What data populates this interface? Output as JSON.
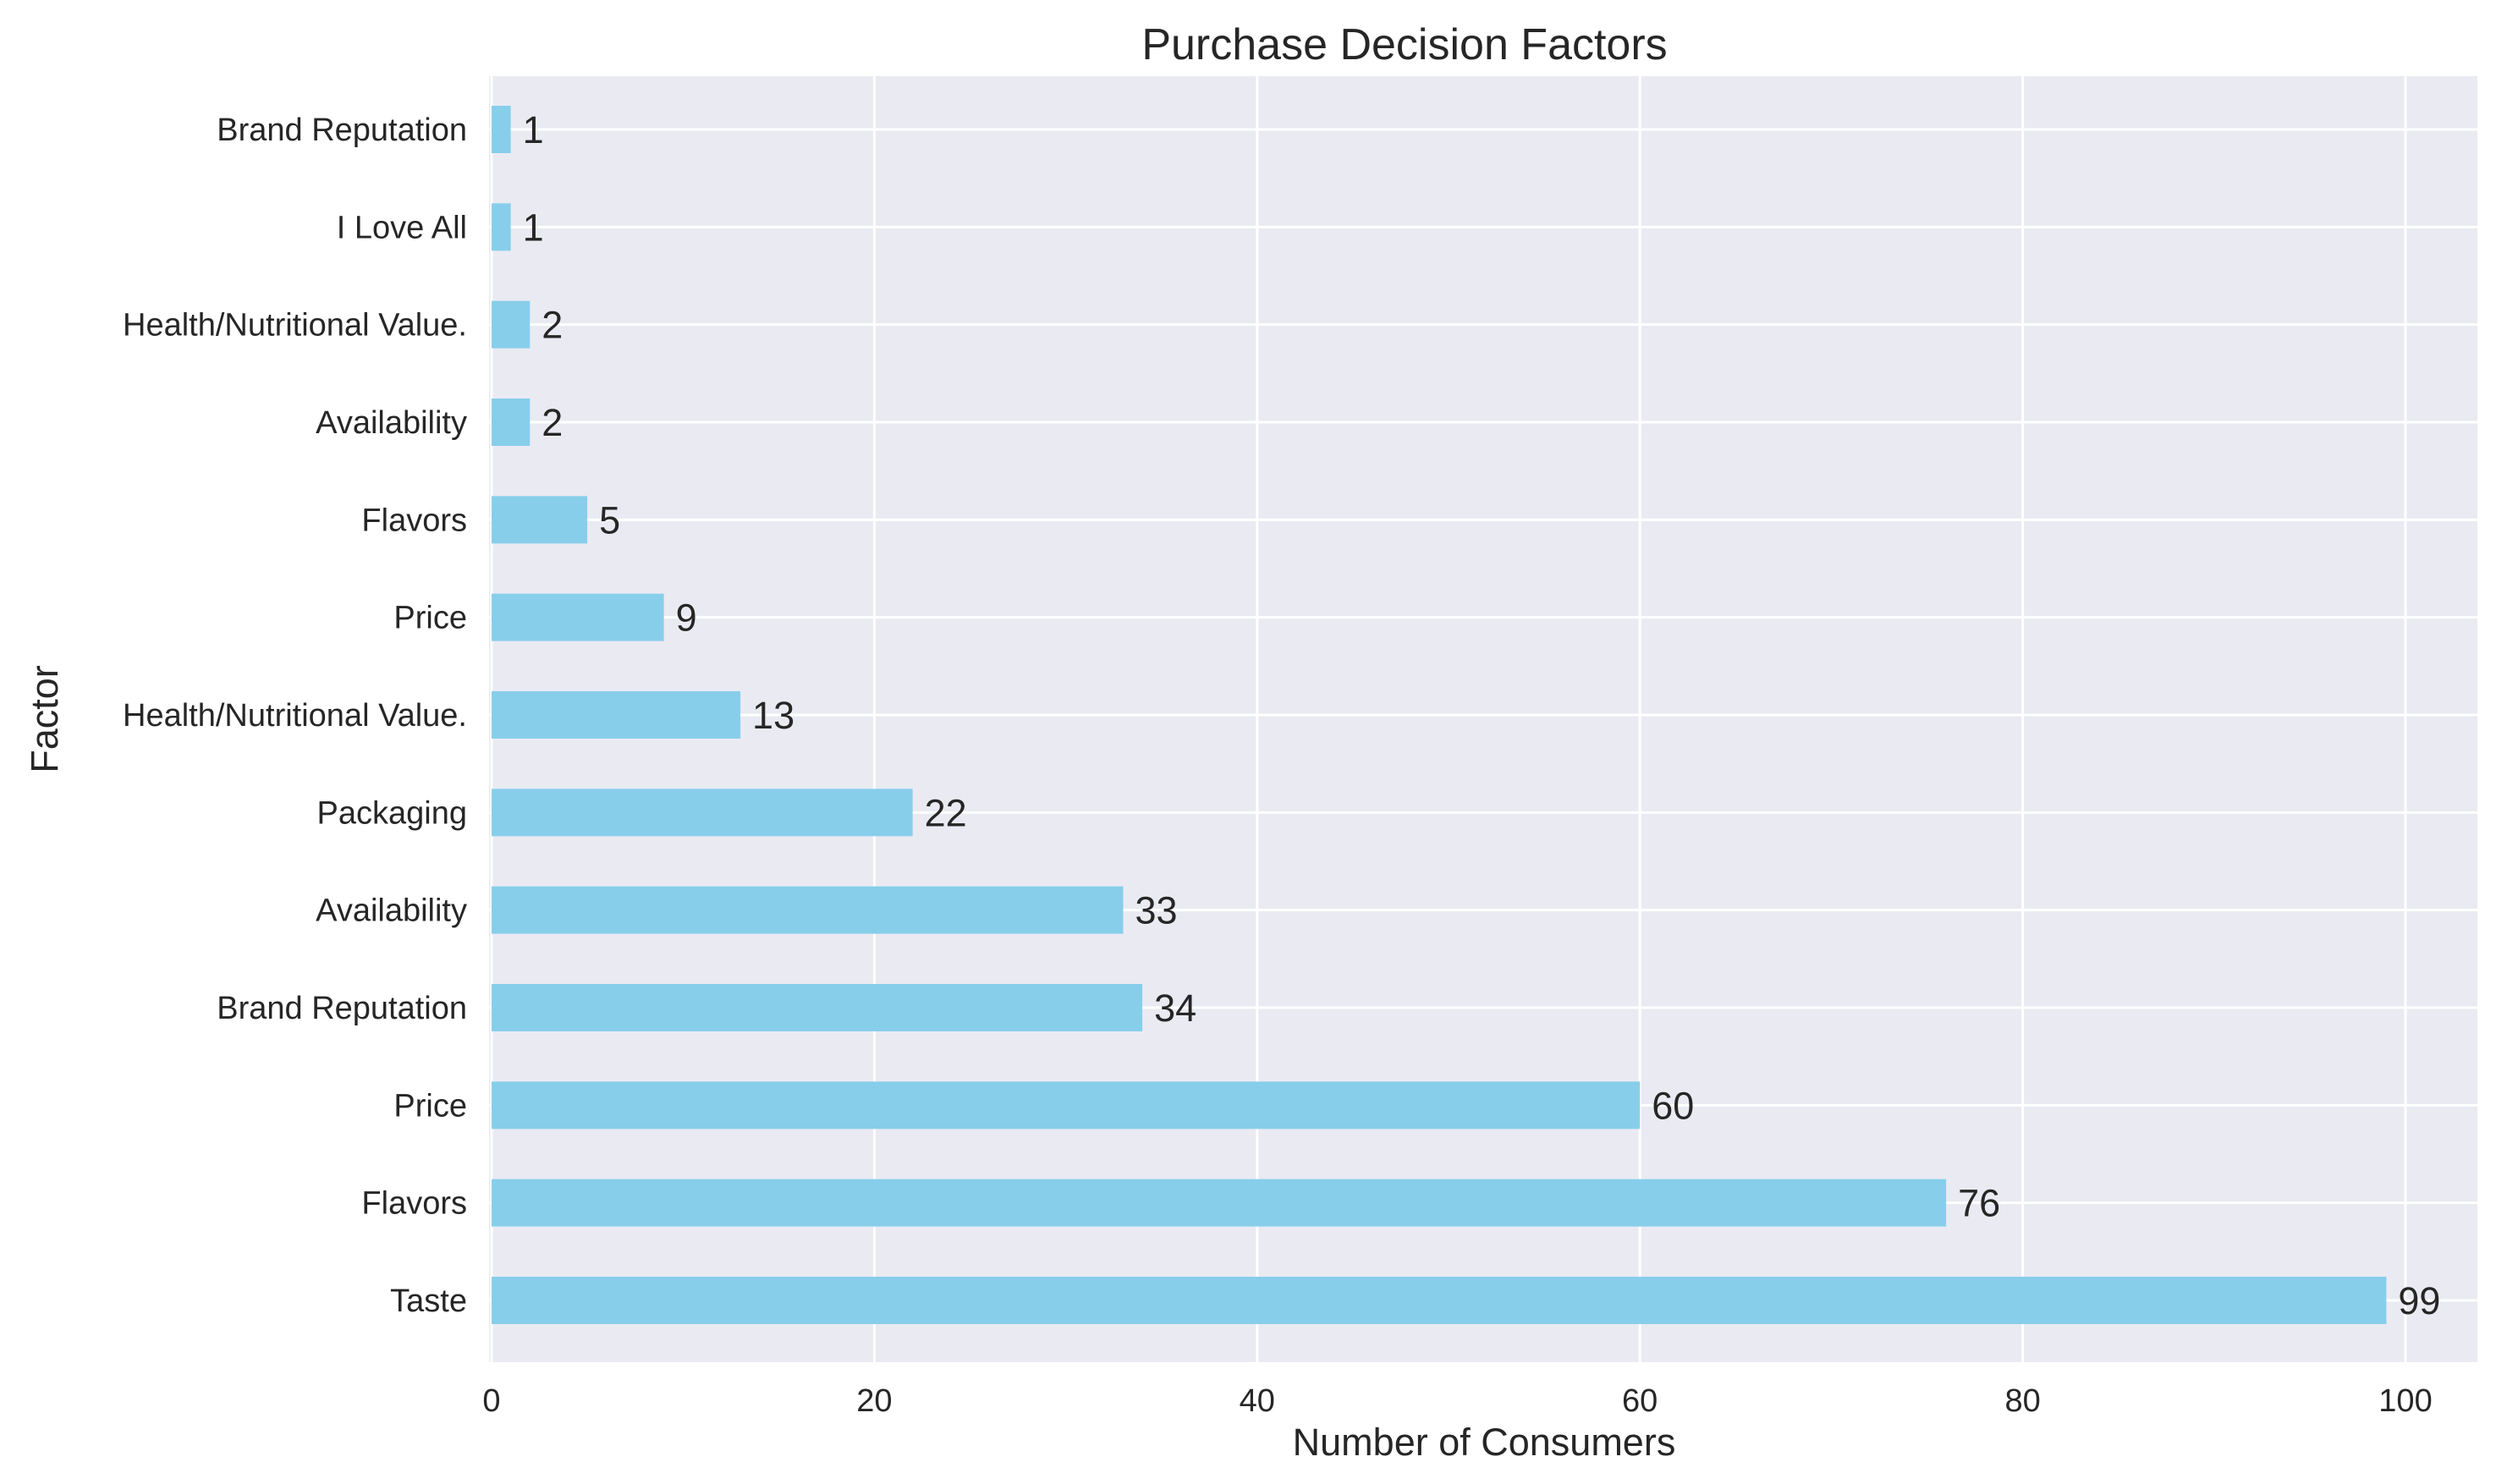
{
  "chart_data": {
    "type": "bar",
    "orientation": "horizontal",
    "title": "Purchase Decision Factors",
    "xlabel": "Number of Consumers",
    "ylabel": "Factor",
    "categories": [
      "Taste",
      "Flavors",
      "Price",
      "Brand Reputation",
      "Availability",
      "Packaging",
      "Health/Nutritional Value.",
      "Price",
      "Flavors",
      "Availability",
      "Health/Nutritional Value.",
      "I Love All",
      "Brand Reputation"
    ],
    "values": [
      99,
      76,
      60,
      34,
      33,
      22,
      13,
      9,
      5,
      2,
      2,
      1,
      1
    ],
    "x_ticks": [
      0,
      20,
      40,
      60,
      80,
      100
    ],
    "xlim": [
      0,
      104
    ],
    "grid": true,
    "legend": "none",
    "colors": {
      "bar": "#87CEEB",
      "plot_background": "#EAEAF2",
      "grid": "#FFFFFF",
      "text": "#262626"
    }
  }
}
